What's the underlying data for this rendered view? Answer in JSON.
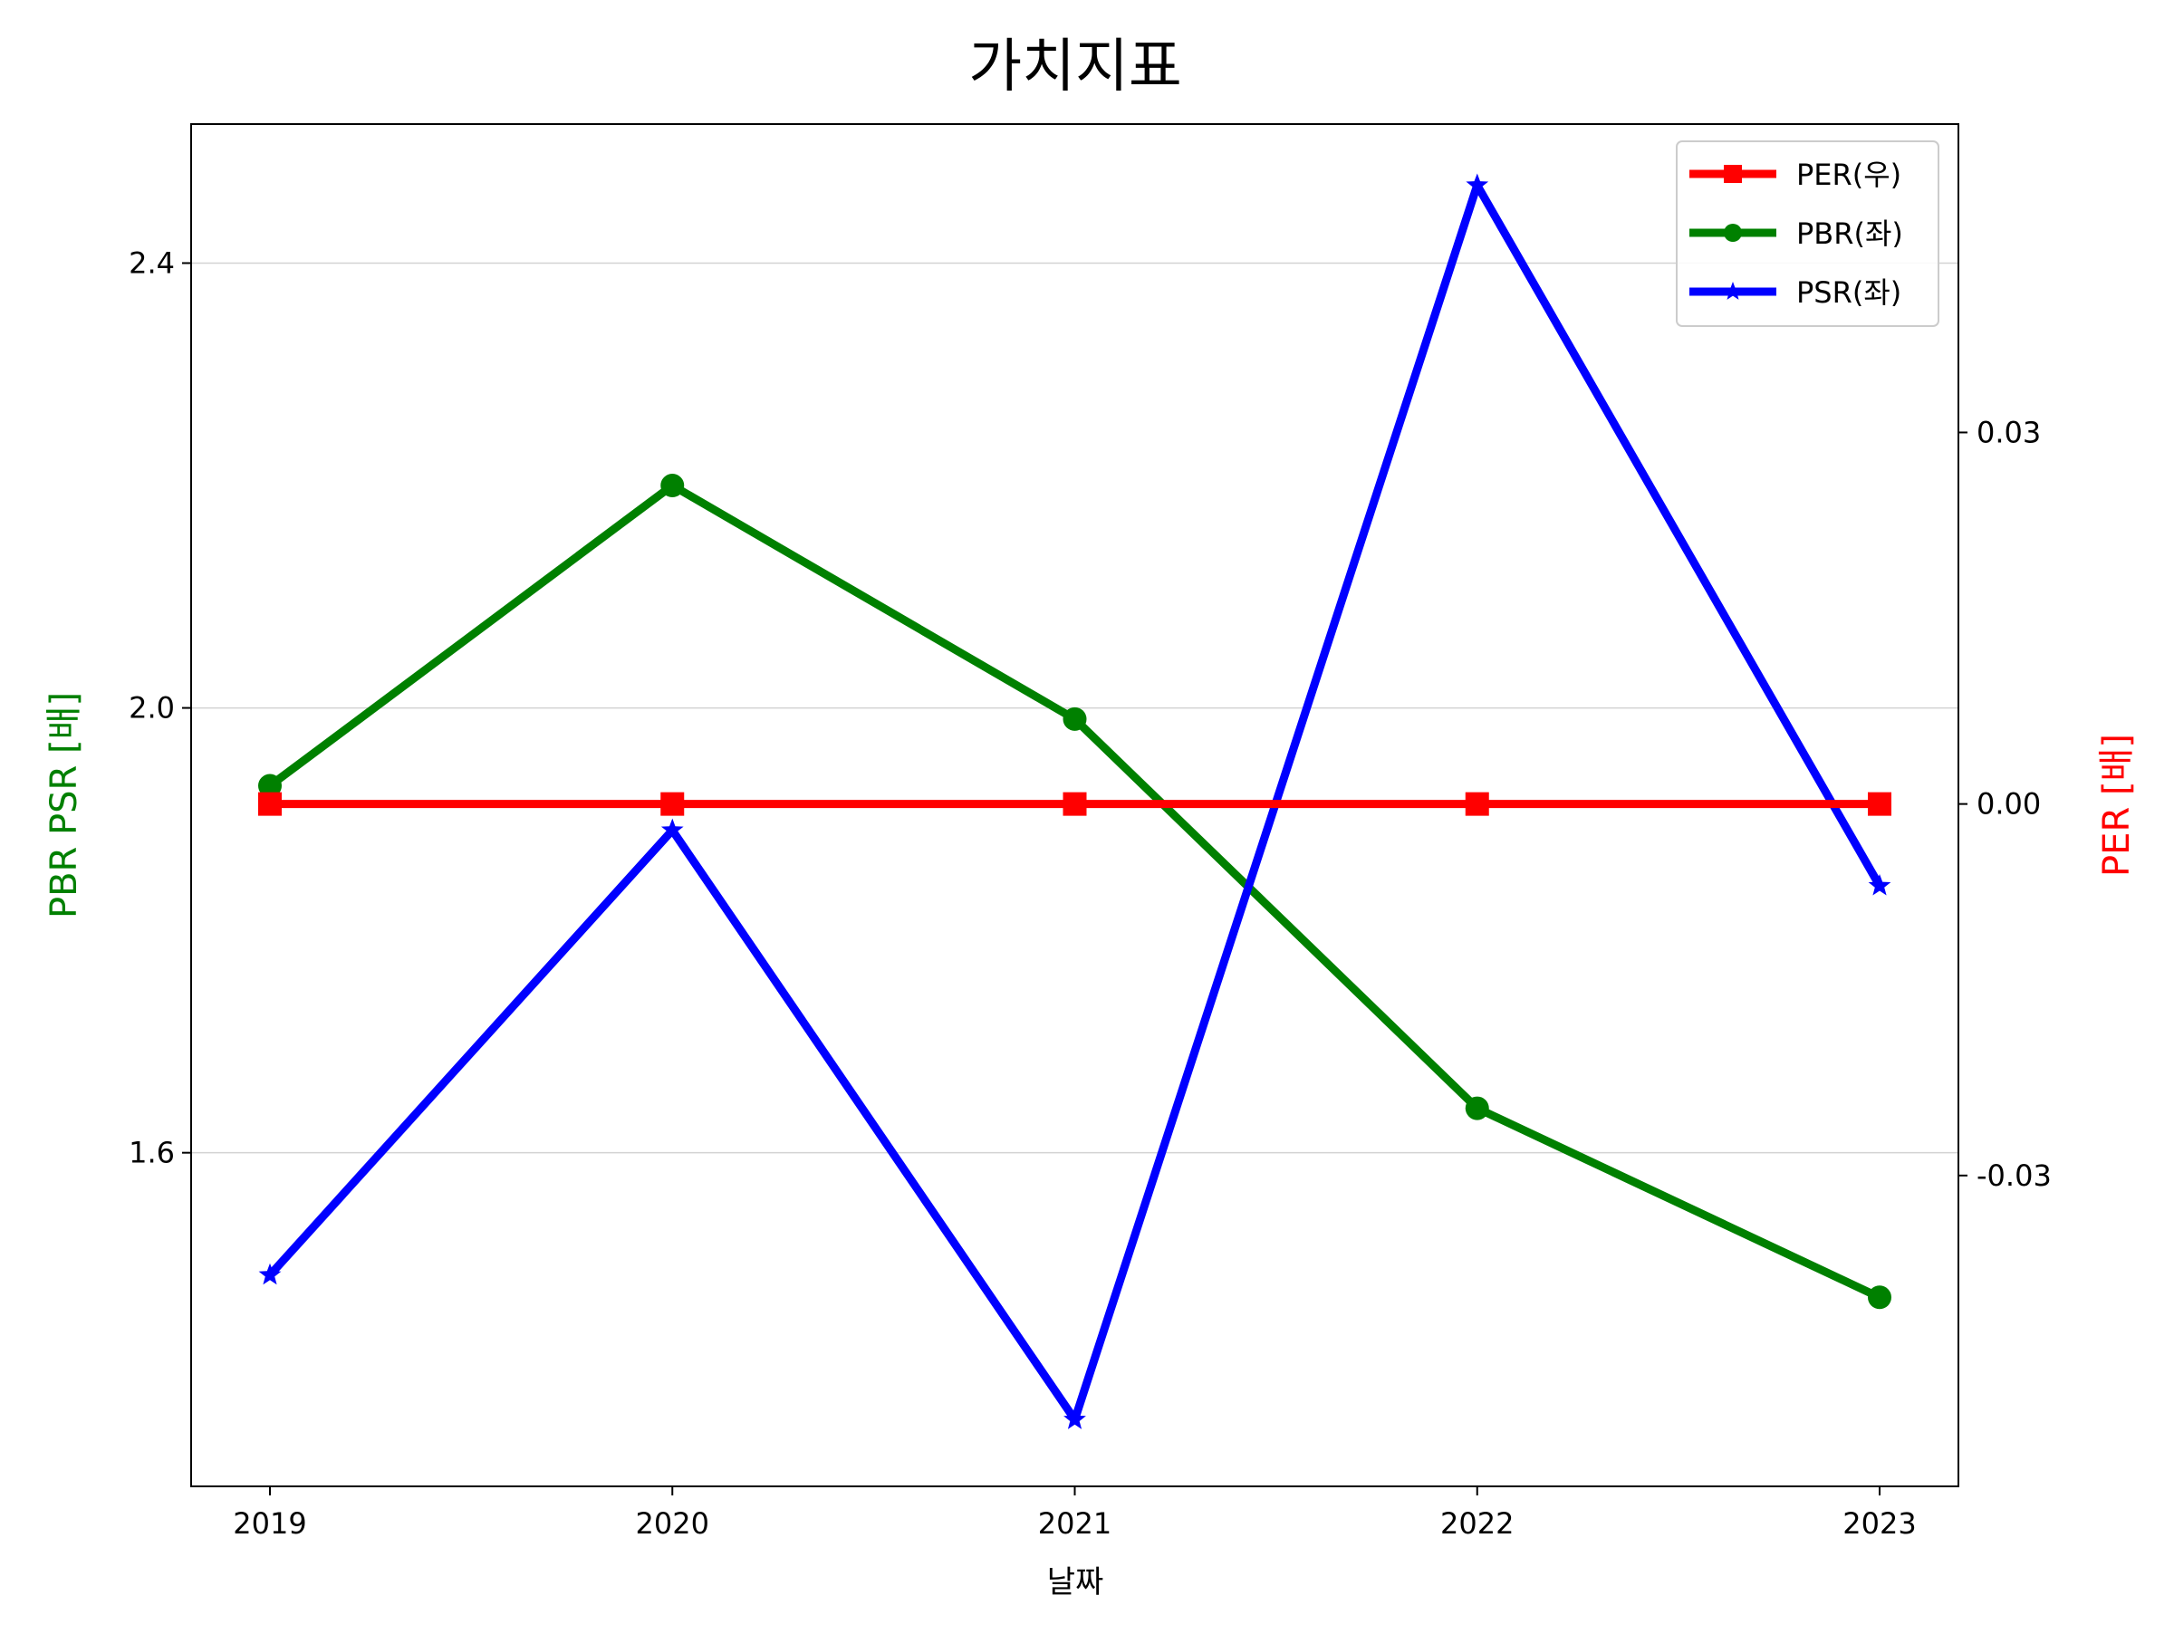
{
  "chart_data": {
    "type": "line",
    "title": "가치지표",
    "xlabel": "날짜",
    "ylabel_left": "PBR PSR [배]",
    "ylabel_right": "PER [배]",
    "categories": [
      "2019",
      "2020",
      "2021",
      "2022",
      "2023"
    ],
    "left_axis": {
      "ylim": [
        1.3,
        2.525
      ],
      "ticks": [
        1.6,
        2.0,
        2.4
      ],
      "tick_labels": [
        "1.6",
        "2.0",
        "2.4"
      ],
      "label_color": "#008000"
    },
    "right_axis": {
      "ylim": [
        -0.0551,
        0.0549
      ],
      "ticks": [
        -0.03,
        0.0,
        0.03
      ],
      "tick_labels": [
        "-0.03",
        "0.00",
        "0.03"
      ],
      "label_color": "#ff0000"
    },
    "grid": "horizontal",
    "legend_position": "top-right",
    "series": [
      {
        "name": "PER(우)",
        "axis": "right",
        "color": "#ff0000",
        "marker": "square",
        "values": [
          0,
          0,
          0,
          0,
          0
        ]
      },
      {
        "name": "PBR(좌)",
        "axis": "left",
        "color": "#008000",
        "marker": "circle",
        "values": [
          1.93,
          2.2,
          1.99,
          1.64,
          1.47
        ]
      },
      {
        "name": "PSR(좌)",
        "axis": "left",
        "color": "#0000ff",
        "marker": "star",
        "values": [
          1.49,
          1.89,
          1.36,
          2.47,
          1.84
        ]
      }
    ]
  }
}
